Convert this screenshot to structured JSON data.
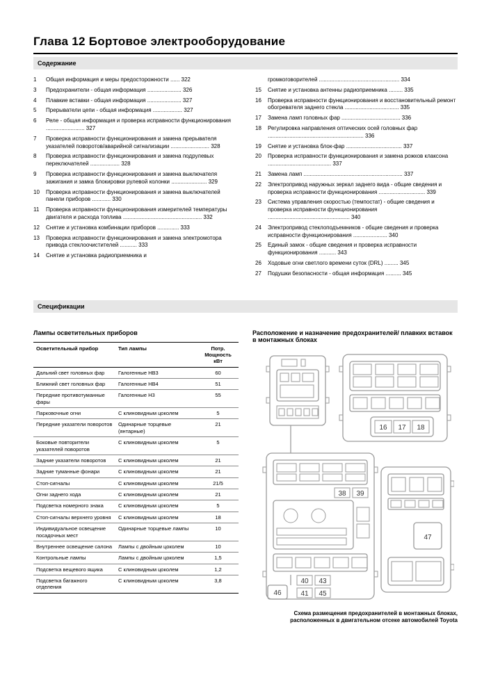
{
  "chapter_title": "Глава 12  Бортовое электрооборудование",
  "section_contents": "Содержание",
  "section_specs": "Спецификации",
  "toc_left": [
    {
      "n": "1",
      "t": "Общая информация и меры предосторожности ......",
      "p": "322"
    },
    {
      "n": "3",
      "t": "Предохранители - общая информация ......................",
      "p": "326"
    },
    {
      "n": "4",
      "t": "Плавкие вставки - общая информация ......................",
      "p": "327"
    },
    {
      "n": "5",
      "t": "Прерыватели цепи - общая информация ...................",
      "p": "327"
    },
    {
      "n": "6",
      "t": "Реле - общая информация и проверка исправности функционирования .........................",
      "p": "327"
    },
    {
      "n": "7",
      "t": "Проверка исправности функционирования и замена прерывателя указателей поворотов/аварийной сигнализации .........................",
      "p": "328"
    },
    {
      "n": "8",
      "t": "Проверка исправности функционирования и замена подрулевых переключателей ...................",
      "p": "328"
    },
    {
      "n": "9",
      "t": "Проверка исправности функционирования и замена выключателя зажигания и замка блокировки рулевой колонки .......................",
      "p": "329"
    },
    {
      "n": "10",
      "t": "Проверка исправности функционирования и замена выключателей панели приборов ............",
      "p": "330"
    },
    {
      "n": "11",
      "t": "Проверка исправности функционирования измерителей температуры двигателя и расхода топлива ...................................................",
      "p": "332"
    },
    {
      "n": "12",
      "t": "Снятие и установка комбинации приборов ..............",
      "p": "333"
    },
    {
      "n": "13",
      "t": "Проверка исправности функционирования и замена электромотора привода стеклоочистителей ...........",
      "p": "333"
    },
    {
      "n": "14",
      "t": "Снятие и установка радиоприемника и",
      "p": ""
    }
  ],
  "toc_right": [
    {
      "n": "",
      "t": "громкоговорителей ....................................................",
      "p": "334"
    },
    {
      "n": "15",
      "t": "Снятие и установка антенны радиоприемника .........",
      "p": "335"
    },
    {
      "n": "16",
      "t": "Проверка исправности функционирования и восстановительный ремонт обогревателя заднего стекла ...................................",
      "p": "335"
    },
    {
      "n": "17",
      "t": "Замена ламп головных фар ......................................",
      "p": "336"
    },
    {
      "n": "18",
      "t": "Регулировка направления оптических осей головных фар ..............................................................",
      "p": "336"
    },
    {
      "n": "19",
      "t": "Снятие и установка блок-фар ....................................",
      "p": "337"
    },
    {
      "n": "20",
      "t": "Проверка исправности функционирования и замена рожков клаксона .........................................",
      "p": "337"
    },
    {
      "n": "21",
      "t": "Замена ламп ................................................................",
      "p": "337"
    },
    {
      "n": "22",
      "t": "Электропривод наружных зеркал заднего вида - общие сведения и проверка исправности функционирования ..............................",
      "p": "339"
    },
    {
      "n": "23",
      "t": "Система управления скоростью (темпостат) - общие сведения и проверка исправности функционирования .....................................................",
      "p": "340"
    },
    {
      "n": "24",
      "t": "Электропривод стеклоподъемников - общие сведения и проверка исправности функционирования ......................",
      "p": "340"
    },
    {
      "n": "25",
      "t": "Единый замок - общие сведения и проверка исправности функционирования ...........",
      "p": "343"
    },
    {
      "n": "26",
      "t": "Ходовые огни светлого времени суток (DRL) .........",
      "p": "345"
    },
    {
      "n": "27",
      "t": "Подушки безопасности - общая информация ..........",
      "p": "345"
    }
  ],
  "lamp_table": {
    "heading": "Лампы осветительных приборов",
    "headers": [
      "Осветительный прибор",
      "Тип лампы",
      "Потр. Мощность кВт"
    ],
    "rows": [
      [
        "Дальний свет головных фар",
        "Галогенные НВ3",
        "60"
      ],
      [
        "Ближний свет головных фар",
        "Галогенные НВ4",
        "51"
      ],
      [
        "Передние противотуманные фары",
        "Галогенные Н3",
        "55"
      ],
      [
        "Парковочные огни",
        "С клиновидным цоколем",
        "5"
      ],
      [
        "Передние указатели поворотов",
        "Одинарные торцевые (янтарные)",
        "21"
      ],
      [
        "Боковые повторители указателей поворотов",
        "С клиновидным цоколем",
        "5"
      ],
      [
        "Задние указатели поворотов",
        "С клиновидным цоколем",
        "21"
      ],
      [
        "Задние туманные фонари",
        "С клиновидным цоколем",
        "21"
      ],
      [
        "Стоп-сигналы",
        "С клиновидным цоколем",
        "21/5"
      ],
      [
        "Огни заднего хода",
        "С клиновидным цоколем",
        "21"
      ],
      [
        "Подсветка номерного знака",
        "С клиновидным цоколем",
        "5"
      ],
      [
        "Стоп-сигналы верхнего уровня",
        "С клиновидным цоколем",
        "18"
      ],
      [
        "Индивидуальное освещение посадочных мест",
        "Одинарные торцевые лампы",
        "10"
      ],
      [
        "Внутреннее освещение салона",
        "Лампы с двойным цоколем",
        "10"
      ],
      [
        "Контрольные лампы",
        "Лампы с двойным цоколем",
        "1,5"
      ],
      [
        "Подсветка вещевого ящика",
        "С клиновидным цоколем",
        "1,2"
      ],
      [
        "Подсветка багажного отделения",
        "С клиновидным цоколем",
        "3,8"
      ]
    ]
  },
  "fuse_heading": "Расположение и назначение предохранителей/ плавких вставок в монтажных блоках",
  "diagram": {
    "labels": {
      "a": "16",
      "b": "17",
      "c": "18",
      "d": "38",
      "e": "39",
      "f": "40",
      "g": "43",
      "h": "41",
      "i": "45",
      "j": "46",
      "k": "47"
    },
    "stroke": "#9a9a9a",
    "fontsize": "10",
    "fontcolor": "#333"
  },
  "diagram_caption": "Схема размещения предохранителей в монтажных блоках, расположенных в двигательном отсеке автомобилей Toyota"
}
